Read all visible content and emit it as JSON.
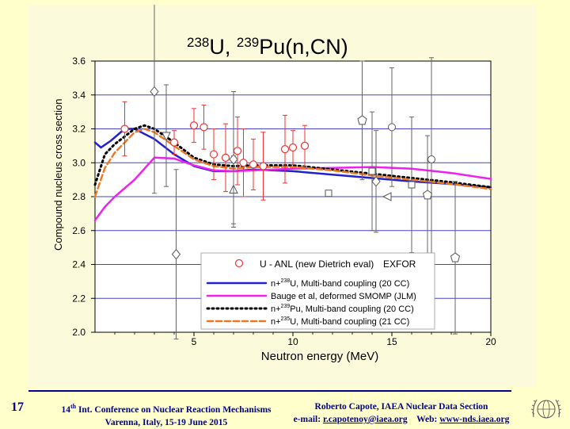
{
  "slide": {
    "number": "17",
    "footer_left": {
      "conference_sup": "th",
      "conference_num": "14",
      "conference_rest": " Int. Conference on Nuclear Reaction Mechanisms",
      "location": "Varenna, Italy, 15-19 June 2015"
    },
    "footer_right": {
      "author": "Roberto Capote, IAEA Nuclear Data Section",
      "email_label": "e-mail: ",
      "email": "r.capotenoy@iaea.org",
      "web_label": "Web: ",
      "web": "www-nds.iaea.org"
    },
    "logo_icon": "iaea-logo-icon"
  },
  "chart_data": {
    "type": "line",
    "title_parts": {
      "m1": "238",
      "e1": "U, ",
      "m2": "239",
      "e2": "Pu(n,CN)"
    },
    "xlabel": "Neutron energy (MeV)",
    "ylabel": "Compound nucleus cross section",
    "xlim": [
      0,
      20
    ],
    "ylim": [
      2.0,
      3.6
    ],
    "xticks": [
      5,
      10,
      15,
      20
    ],
    "yticks": [
      2.0,
      2.2,
      2.4,
      2.6,
      2.8,
      3.0,
      3.2,
      3.4,
      3.6
    ],
    "grid": true,
    "legend_placement": "bottom-right",
    "legend": {
      "points_label": "U - ANL (new Dietrich eval)",
      "exfor_label": "EXFOR",
      "entries": [
        {
          "pre": "n+",
          "sup": "238",
          "post": "U, Multi-band coupling (20 CC)",
          "color": "#2222cc",
          "style": "solid"
        },
        {
          "pre": "Bauge et al, deformed SMOMP (JLM)",
          "sup": "",
          "post": "",
          "color": "#ee22ee",
          "style": "solid"
        },
        {
          "pre": "n+",
          "sup": "239",
          "post": "Pu, Multi-band coupling (20 CC)",
          "color": "#000000",
          "style": "dotted"
        },
        {
          "pre": "n+",
          "sup": "235",
          "post": "U, Multi-band coupling (21 CC)",
          "color": "#ee7722",
          "style": "dashed"
        }
      ]
    },
    "series": [
      {
        "color": "#2222cc",
        "style": "solid",
        "x": [
          0,
          0.3,
          0.8,
          1.5,
          2.0,
          3.0,
          4.0,
          5.0,
          6.0,
          7.0,
          8.0,
          10.0,
          12.0,
          14.0,
          16.0,
          18.0,
          20.0
        ],
        "y": [
          3.12,
          3.09,
          3.13,
          3.2,
          3.2,
          3.14,
          3.05,
          2.98,
          2.95,
          2.95,
          2.96,
          2.95,
          2.93,
          2.91,
          2.89,
          2.875,
          2.855
        ]
      },
      {
        "color": "#ee22ee",
        "style": "solid",
        "x": [
          0,
          0.5,
          1.0,
          2.0,
          3.0,
          4.0,
          5.0,
          6.0,
          7.0,
          8.0,
          10.0,
          12.0,
          14.0,
          16.0,
          18.0,
          20.0
        ],
        "y": [
          2.66,
          2.74,
          2.8,
          2.9,
          3.03,
          3.025,
          2.985,
          2.955,
          2.95,
          2.955,
          2.965,
          2.97,
          2.975,
          2.965,
          2.94,
          2.905
        ]
      },
      {
        "color": "#000000",
        "style": "dotted",
        "x": [
          0,
          0.5,
          1.0,
          2.0,
          2.5,
          3.0,
          4.0,
          5.0,
          6.0,
          7.0,
          8.0,
          10.0,
          12.0,
          14.0,
          16.0,
          18.0,
          20.0
        ],
        "y": [
          2.87,
          3.05,
          3.11,
          3.2,
          3.22,
          3.2,
          3.12,
          3.03,
          2.99,
          2.98,
          2.985,
          2.985,
          2.96,
          2.935,
          2.91,
          2.885,
          2.855
        ]
      },
      {
        "color": "#ee7722",
        "style": "dashed",
        "x": [
          0,
          0.5,
          1.0,
          2.0,
          2.5,
          3.0,
          4.0,
          5.0,
          6.0,
          7.0,
          8.0,
          10.0,
          12.0,
          14.0,
          16.0,
          18.0,
          20.0
        ],
        "y": [
          2.8,
          2.97,
          3.06,
          3.18,
          3.2,
          3.18,
          3.1,
          3.02,
          2.98,
          2.965,
          2.975,
          2.975,
          2.955,
          2.925,
          2.9,
          2.875,
          2.845
        ]
      }
    ],
    "anl_points": [
      {
        "x": 1.5,
        "y": 3.2,
        "err": 0.16
      },
      {
        "x": 4.0,
        "y": 3.12,
        "err": 0.07
      },
      {
        "x": 5.0,
        "y": 3.22,
        "err": 0.1
      },
      {
        "x": 5.5,
        "y": 3.21,
        "err": 0.13
      },
      {
        "x": 6.0,
        "y": 3.05,
        "err": 0.15
      },
      {
        "x": 6.6,
        "y": 3.03,
        "err": 0.2
      },
      {
        "x": 7.2,
        "y": 3.07,
        "err": 0.2
      },
      {
        "x": 7.5,
        "y": 3.0,
        "err": 0.2
      },
      {
        "x": 8.0,
        "y": 2.99,
        "err": 0.15
      },
      {
        "x": 8.5,
        "y": 2.98,
        "err": 0.2
      },
      {
        "x": 9.6,
        "y": 3.08,
        "err": 0.2
      },
      {
        "x": 10.0,
        "y": 3.09,
        "err": 0.1
      },
      {
        "x": 10.6,
        "y": 3.1,
        "err": 0.12
      }
    ],
    "exfor_points": [
      {
        "x": 3.0,
        "y": 3.42,
        "err": 0.6,
        "marker": "diamond"
      },
      {
        "x": 3.6,
        "y": 3.16,
        "err": 0.3,
        "marker": "triangle-down"
      },
      {
        "x": 4.1,
        "y": 2.46,
        "err": 0.5,
        "marker": "diamond"
      },
      {
        "x": 7.0,
        "y": 2.84,
        "err": 0.2,
        "marker": "triangle-up"
      },
      {
        "x": 7.0,
        "y": 3.02,
        "err": 0.4,
        "marker": "diamond"
      },
      {
        "x": 11.8,
        "y": 2.82,
        "err": 0.0,
        "marker": "square"
      },
      {
        "x": 13.5,
        "y": 3.25,
        "err": 0.35,
        "marker": "pentagon"
      },
      {
        "x": 14.0,
        "y": 2.95,
        "err": 0.35,
        "marker": "square"
      },
      {
        "x": 14.2,
        "y": 2.89,
        "err": 0.3,
        "marker": "diamond"
      },
      {
        "x": 14.8,
        "y": 2.8,
        "err": 0.0,
        "marker": "triangle-left"
      },
      {
        "x": 15.0,
        "y": 3.21,
        "err": 0.35,
        "marker": "circle"
      },
      {
        "x": 16.0,
        "y": 2.87,
        "err": 0.4,
        "marker": "square"
      },
      {
        "x": 16.8,
        "y": 2.81,
        "err": 0.35,
        "marker": "pentagon"
      },
      {
        "x": 17.0,
        "y": 3.02,
        "err": 0.6,
        "marker": "circle"
      },
      {
        "x": 18.2,
        "y": 2.44,
        "err": 0.45,
        "marker": "pentagon"
      }
    ]
  }
}
